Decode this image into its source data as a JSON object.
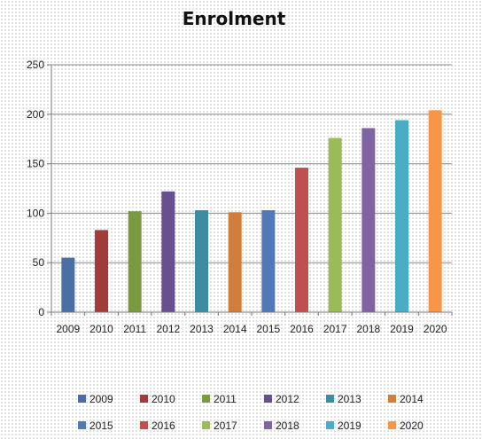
{
  "chart_data": {
    "type": "bar",
    "title": "Enrolment",
    "xlabel": "",
    "ylabel": "",
    "ylim": [
      0,
      250
    ],
    "yticks": [
      0,
      50,
      100,
      150,
      200,
      250
    ],
    "grid": true,
    "legend_position": "bottom",
    "categories": [
      "2009",
      "2010",
      "2011",
      "2012",
      "2013",
      "2014",
      "2015",
      "2016",
      "2017",
      "2018",
      "2019",
      "2020"
    ],
    "values": [
      55,
      83,
      102,
      122,
      103,
      101,
      103,
      146,
      176,
      186,
      194,
      204
    ],
    "colors": [
      "#4a6fa5",
      "#a23c3b",
      "#7a9a41",
      "#68508e",
      "#3c8da2",
      "#d07f3a",
      "#5179b8",
      "#c0504d",
      "#9bbb59",
      "#8064a2",
      "#4bacc6",
      "#f79646"
    ]
  }
}
